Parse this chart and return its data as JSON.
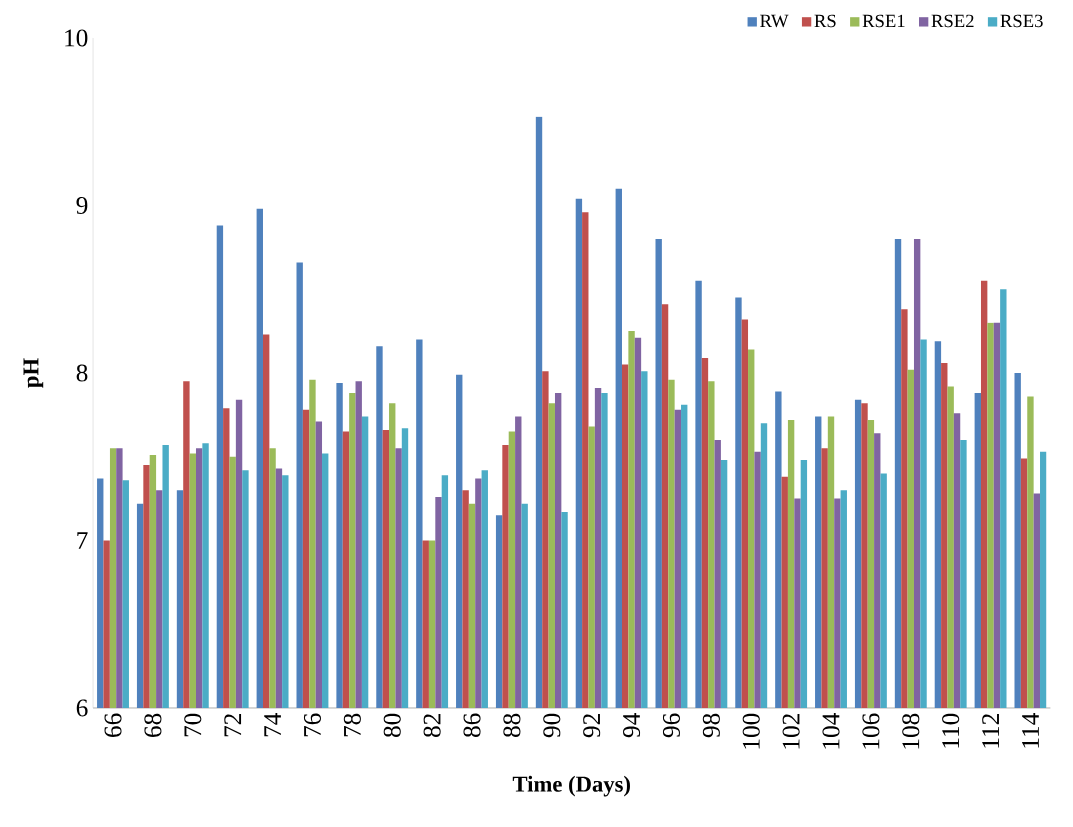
{
  "chart_data": {
    "type": "bar",
    "xlabel": "Time (Days)",
    "ylabel": "pH",
    "categories": [
      "66",
      "68",
      "70",
      "72",
      "74",
      "76",
      "78",
      "80",
      "82",
      "86",
      "88",
      "90",
      "92",
      "94",
      "96",
      "98",
      "100",
      "102",
      "104",
      "106",
      "108",
      "110",
      "112",
      "114"
    ],
    "series": [
      {
        "name": "RW",
        "color": "#4f81bd",
        "values": [
          7.37,
          7.22,
          7.3,
          8.88,
          8.98,
          8.66,
          7.94,
          8.16,
          8.2,
          7.99,
          7.15,
          9.53,
          9.04,
          9.1,
          8.8,
          8.55,
          8.45,
          7.89,
          7.74,
          7.84,
          8.8,
          8.19,
          7.88,
          8.0
        ]
      },
      {
        "name": "RS",
        "color": "#c0504d",
        "values": [
          7.0,
          7.45,
          7.95,
          7.79,
          8.23,
          7.78,
          7.65,
          7.66,
          7.0,
          7.3,
          7.57,
          8.01,
          8.96,
          8.05,
          8.41,
          8.09,
          8.32,
          7.38,
          7.55,
          7.82,
          8.38,
          8.06,
          8.55,
          7.49
        ]
      },
      {
        "name": "RSE1",
        "color": "#9bbb59",
        "values": [
          7.55,
          7.51,
          7.52,
          7.5,
          7.55,
          7.96,
          7.88,
          7.82,
          7.0,
          7.22,
          7.65,
          7.82,
          7.68,
          8.25,
          7.96,
          7.95,
          8.14,
          7.72,
          7.74,
          7.72,
          8.02,
          7.92,
          8.3,
          7.86
        ]
      },
      {
        "name": "RSE2",
        "color": "#8064a2",
        "values": [
          7.55,
          7.3,
          7.55,
          7.84,
          7.43,
          7.71,
          7.95,
          7.55,
          7.26,
          7.37,
          7.74,
          7.88,
          7.91,
          8.21,
          7.78,
          7.6,
          7.53,
          7.25,
          7.25,
          7.64,
          8.8,
          7.76,
          8.3,
          7.28
        ]
      },
      {
        "name": "RSE3",
        "color": "#4bacc6",
        "values": [
          7.36,
          7.57,
          7.58,
          7.42,
          7.39,
          7.52,
          7.74,
          7.67,
          7.39,
          7.42,
          7.22,
          7.17,
          7.88,
          8.01,
          7.81,
          7.48,
          7.7,
          7.48,
          7.3,
          7.4,
          8.2,
          7.6,
          8.5,
          7.53
        ]
      }
    ],
    "ylim": [
      6,
      10
    ],
    "yticks": [
      6,
      7,
      8,
      9,
      10
    ],
    "legend": "top right"
  }
}
